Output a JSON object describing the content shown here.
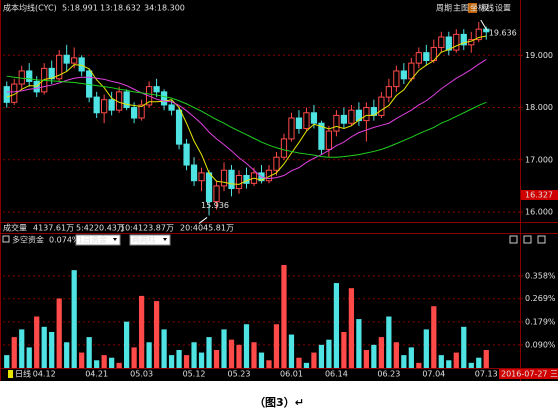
{
  "caption": "（图3）↵",
  "chart_data": [
    {
      "type": "candlestick",
      "title": "成本均线(CYC)",
      "toolbar": [
        "周期",
        "主图",
        "坐标线",
        "权",
        "设置"
      ],
      "up_color": "#ff4a4a",
      "down_color": "#4fe3e3",
      "open": [
        18.4,
        18.1,
        18.45,
        18.7,
        18.5,
        18.3,
        18.75,
        18.55,
        19.0,
        18.85,
        18.95,
        18.7,
        18.2,
        17.9,
        18.15,
        17.95,
        18.3,
        18.0,
        17.8,
        18.05,
        18.4,
        18.3,
        18.05,
        17.95,
        17.3,
        16.9,
        16.6,
        16.75,
        16.2,
        16.5,
        16.8,
        16.45,
        16.7,
        16.55,
        16.75,
        16.6,
        16.8,
        17.05,
        17.4,
        17.8,
        17.6,
        17.9,
        17.7,
        17.2,
        17.55,
        17.85,
        17.7,
        17.95,
        17.75,
        18.0,
        17.85,
        18.2,
        18.4,
        18.7,
        18.55,
        18.85,
        19.05,
        18.9,
        19.15,
        19.35,
        19.1,
        19.4,
        19.2,
        19.3,
        19.5
      ],
      "high": [
        18.5,
        18.55,
        18.8,
        18.85,
        18.6,
        18.85,
        18.9,
        19.1,
        19.2,
        19.15,
        19.0,
        18.75,
        18.3,
        18.25,
        18.3,
        18.4,
        18.35,
        18.1,
        18.15,
        18.5,
        18.55,
        18.35,
        18.15,
        18.0,
        17.4,
        17.05,
        16.85,
        16.8,
        16.6,
        16.95,
        16.9,
        16.8,
        16.85,
        16.85,
        16.9,
        16.9,
        17.15,
        17.5,
        17.9,
        17.95,
        18.0,
        18.05,
        17.75,
        17.65,
        17.95,
        18.0,
        18.05,
        18.1,
        18.1,
        18.15,
        18.3,
        18.55,
        18.8,
        18.85,
        18.95,
        19.15,
        19.2,
        19.3,
        19.45,
        19.45,
        19.5,
        19.5,
        19.45,
        19.636,
        19.55
      ],
      "low": [
        18.0,
        18.05,
        18.35,
        18.4,
        18.2,
        18.25,
        18.45,
        18.5,
        18.7,
        18.75,
        18.6,
        18.1,
        17.8,
        17.7,
        17.85,
        17.9,
        17.95,
        17.7,
        17.75,
        18.0,
        18.2,
        17.95,
        17.85,
        17.2,
        16.8,
        16.5,
        16.4,
        15.936,
        16.05,
        16.4,
        16.3,
        16.35,
        16.45,
        16.5,
        16.55,
        16.55,
        16.7,
        17.0,
        17.35,
        17.5,
        17.55,
        17.6,
        17.1,
        17.05,
        17.45,
        17.6,
        17.65,
        17.65,
        17.35,
        17.75,
        17.8,
        18.1,
        18.3,
        18.45,
        18.5,
        18.75,
        18.8,
        18.85,
        19.05,
        19.0,
        19.05,
        19.1,
        19.05,
        19.25,
        19.3
      ],
      "close": [
        18.1,
        18.45,
        18.7,
        18.5,
        18.3,
        18.75,
        18.55,
        19.0,
        18.85,
        18.95,
        18.7,
        18.2,
        17.9,
        18.15,
        17.95,
        18.3,
        18.0,
        17.8,
        18.05,
        18.4,
        18.3,
        18.05,
        17.95,
        17.3,
        16.9,
        16.6,
        16.75,
        16.2,
        16.5,
        16.8,
        16.45,
        16.7,
        16.55,
        16.75,
        16.6,
        16.8,
        17.05,
        17.4,
        17.8,
        17.6,
        17.9,
        17.7,
        17.2,
        17.55,
        17.85,
        17.7,
        17.95,
        17.75,
        18.0,
        17.85,
        18.2,
        18.4,
        18.7,
        18.55,
        18.85,
        19.05,
        18.9,
        19.15,
        19.35,
        19.1,
        19.4,
        19.2,
        19.3,
        19.5,
        19.45
      ],
      "series": [
        {
          "name": "5:18.991",
          "color": "#e6e600",
          "values": [
            18.2,
            18.25,
            18.35,
            18.42,
            18.41,
            18.54,
            18.56,
            18.62,
            18.69,
            18.82,
            18.81,
            18.74,
            18.53,
            18.38,
            18.18,
            18.1,
            18.06,
            18.04,
            18.02,
            18.11,
            18.11,
            18.12,
            18.15,
            18.0,
            17.7,
            17.36,
            17.1,
            16.75,
            16.59,
            16.57,
            16.54,
            16.53,
            16.6,
            16.65,
            16.61,
            16.68,
            16.75,
            16.92,
            17.13,
            17.33,
            17.55,
            17.68,
            17.64,
            17.59,
            17.64,
            17.6,
            17.65,
            17.76,
            17.85,
            17.85,
            17.95,
            18.04,
            18.23,
            18.34,
            18.54,
            18.71,
            18.81,
            18.9,
            19.06,
            19.11,
            19.18,
            19.24,
            19.27,
            19.34,
            19.37
          ]
        },
        {
          "name": "13:18.632",
          "color": "#e040e0",
          "values": [
            18.3,
            18.3,
            18.32,
            18.35,
            18.37,
            18.4,
            18.43,
            18.47,
            18.52,
            18.56,
            18.58,
            18.58,
            18.56,
            18.54,
            18.5,
            18.47,
            18.42,
            18.35,
            18.28,
            18.22,
            18.16,
            18.12,
            18.11,
            18.04,
            17.94,
            17.82,
            17.69,
            17.53,
            17.4,
            17.29,
            17.17,
            17.04,
            16.93,
            16.8,
            16.67,
            16.64,
            16.66,
            16.7,
            16.79,
            16.85,
            16.95,
            17.03,
            17.1,
            17.18,
            17.27,
            17.34,
            17.44,
            17.52,
            17.57,
            17.62,
            17.66,
            17.7,
            17.79,
            17.87,
            17.95,
            18.05,
            18.13,
            18.24,
            18.36,
            18.46,
            18.56,
            18.64,
            18.73,
            18.83,
            18.92
          ]
        },
        {
          "name": "34:18.300",
          "color": "#20d020",
          "values": [
            18.6,
            18.58,
            18.56,
            18.55,
            18.53,
            18.52,
            18.51,
            18.5,
            18.49,
            18.48,
            18.46,
            18.44,
            18.42,
            18.4,
            18.38,
            18.35,
            18.33,
            18.3,
            18.28,
            18.26,
            18.24,
            18.21,
            18.18,
            18.13,
            18.07,
            18.0,
            17.93,
            17.85,
            17.77,
            17.7,
            17.62,
            17.55,
            17.48,
            17.41,
            17.34,
            17.28,
            17.23,
            17.19,
            17.16,
            17.13,
            17.11,
            17.09,
            17.06,
            17.05,
            17.05,
            17.06,
            17.08,
            17.1,
            17.13,
            17.16,
            17.2,
            17.25,
            17.31,
            17.37,
            17.43,
            17.5,
            17.56,
            17.62,
            17.7,
            17.76,
            17.83,
            17.9,
            17.97,
            18.04,
            18.1
          ]
        }
      ],
      "ylim": [
        15.81,
        19.79
      ],
      "yticks": [
        {
          "value": 16,
          "label": "16.000"
        },
        {
          "value": 17,
          "label": "17.000"
        },
        {
          "value": 18,
          "label": "18.000"
        },
        {
          "value": 19,
          "label": "19.000"
        }
      ],
      "grid": true,
      "cursor_price": 16.327,
      "volume_info": [
        {
          "text": "成交量",
          "color": "#e0e0e0"
        },
        {
          "text": "4137.61万",
          "color": "#e0e0e0"
        },
        {
          "text": "5:4220.43万",
          "color": "#e6e600"
        },
        {
          "text": "10:4123.87万",
          "color": "#e040e0"
        },
        {
          "text": "20:4045.81万",
          "color": "#20d020"
        }
      ]
    },
    {
      "type": "bar",
      "title": "多空资金",
      "subtitle": "0.074%",
      "selectors": [
        "1日资金",
        "两网柱"
      ],
      "period": "日线",
      "cursor_date": "2016-07-27 三",
      "categories": [
        null,
        null,
        null,
        null,
        null,
        "04.12",
        null,
        null,
        null,
        null,
        null,
        null,
        "04.21",
        null,
        null,
        null,
        null,
        null,
        "05.03",
        null,
        null,
        null,
        null,
        null,
        null,
        "05.12",
        null,
        null,
        null,
        null,
        null,
        "05.23",
        null,
        null,
        null,
        null,
        null,
        null,
        "06.01",
        null,
        null,
        null,
        null,
        null,
        "06.14",
        null,
        null,
        null,
        null,
        null,
        null,
        "06.23",
        null,
        null,
        null,
        null,
        null,
        "07.04",
        null,
        null,
        null,
        null,
        null,
        null,
        "07.13"
      ],
      "values": [
        0.05,
        0.12,
        0.15,
        0.08,
        0.2,
        0.16,
        0.14,
        0.27,
        0.1,
        0.38,
        0.06,
        0.12,
        0.03,
        0.05,
        0.04,
        0.02,
        0.18,
        0.08,
        0.28,
        0.1,
        0.26,
        0.15,
        0.05,
        0.07,
        0.05,
        0.1,
        0.06,
        0.12,
        0.07,
        0.15,
        0.11,
        0.09,
        0.17,
        0.1,
        0.06,
        0.03,
        0.17,
        0.4,
        0.13,
        0.04,
        0.02,
        0.06,
        0.09,
        0.11,
        0.33,
        0.14,
        0.31,
        0.19,
        0.07,
        0.09,
        0.12,
        0.2,
        0.1,
        0.05,
        0.08,
        0.02,
        0.15,
        0.24,
        0.05,
        0.03,
        0.06,
        0.16,
        0.02,
        0.04,
        0.07
      ],
      "colors": [
        "#4fe3e3",
        "#ff4a4a",
        "#4fe3e3",
        "#4fe3e3",
        "#ff4a4a",
        "#4fe3e3",
        "#4fe3e3",
        "#ff4a4a",
        "#4fe3e3",
        "#4fe3e3",
        "#ff4a4a",
        "#4fe3e3",
        "#4fe3e3",
        "#ff4a4a",
        "#4fe3e3",
        "#ff4a4a",
        "#4fe3e3",
        "#ff4a4a",
        "#ff4a4a",
        "#4fe3e3",
        "#ff4a4a",
        "#4fe3e3",
        "#4fe3e3",
        "#4fe3e3",
        "#ff4a4a",
        "#4fe3e3",
        "#4fe3e3",
        "#4fe3e3",
        "#ff4a4a",
        "#4fe3e3",
        "#ff4a4a",
        "#ff4a4a",
        "#4fe3e3",
        "#ff4a4a",
        "#4fe3e3",
        "#ff4a4a",
        "#ff4a4a",
        "#ff4a4a",
        "#4fe3e3",
        "#ff4a4a",
        "#4fe3e3",
        "#ff4a4a",
        "#4fe3e3",
        "#4fe3e3",
        "#4fe3e3",
        "#ff4a4a",
        "#ff4a4a",
        "#4fe3e3",
        "#ff4a4a",
        "#4fe3e3",
        "#ff4a4a",
        "#4fe3e3",
        "#ff4a4a",
        "#4fe3e3",
        "#4fe3e3",
        "#ff4a4a",
        "#4fe3e3",
        "#ff4a4a",
        "#4fe3e3",
        "#4fe3e3",
        "#ff4a4a",
        "#4fe3e3",
        "#4fe3e3",
        "#4fe3e3",
        "#ff4a4a"
      ],
      "ylim": [
        0,
        0.47
      ],
      "yticks": [
        {
          "value": 0.09,
          "label": "0.090%"
        },
        {
          "value": 0.179,
          "label": "0.179%"
        },
        {
          "value": 0.269,
          "label": "0.269%"
        },
        {
          "value": 0.358,
          "label": "0.358%"
        }
      ],
      "grid": true
    }
  ]
}
